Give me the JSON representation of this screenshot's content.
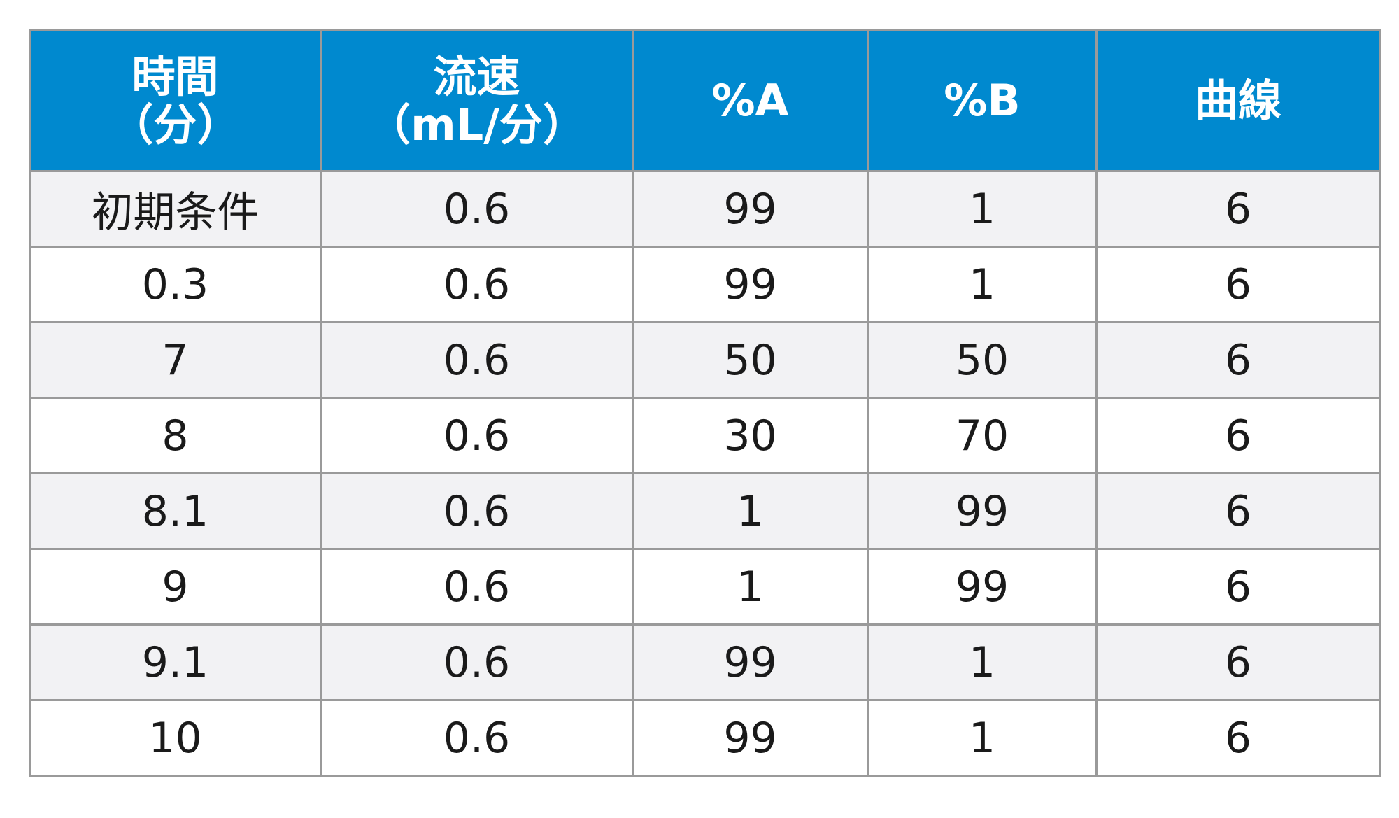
{
  "table": {
    "headers": [
      {
        "line1": "時間",
        "line2": "（分）"
      },
      {
        "line1": "流速",
        "line2": "（mL/分）"
      },
      {
        "line1": "%A",
        "line2": ""
      },
      {
        "line1": "%B",
        "line2": ""
      },
      {
        "line1": "曲線",
        "line2": ""
      }
    ],
    "rows": [
      [
        "初期条件",
        "0.6",
        "99",
        "1",
        "6"
      ],
      [
        "0.3",
        "0.6",
        "99",
        "1",
        "6"
      ],
      [
        "7",
        "0.6",
        "50",
        "50",
        "6"
      ],
      [
        "8",
        "0.6",
        "30",
        "70",
        "6"
      ],
      [
        "8.1",
        "0.6",
        "1",
        "99",
        "6"
      ],
      [
        "9",
        "0.6",
        "1",
        "99",
        "6"
      ],
      [
        "9.1",
        "0.6",
        "99",
        "1",
        "6"
      ],
      [
        "10",
        "0.6",
        "99",
        "1",
        "6"
      ]
    ]
  },
  "colors": {
    "header_bg": "#0089cf",
    "header_text": "#ffffff",
    "row_alt_bg": "#f2f2f4",
    "border": "#9a9a9a"
  }
}
